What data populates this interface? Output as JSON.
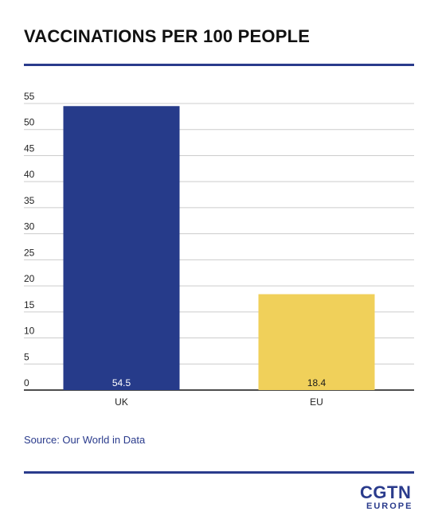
{
  "title": "VACCINATIONS PER 100 PEOPLE",
  "source": "Source: Our World in Data",
  "logo": {
    "main": "CGTN",
    "sub": "EUROPE"
  },
  "colors": {
    "accent": "#2a3b8c",
    "uk_bar": "#263b8a",
    "eu_bar": "#f0d05a",
    "grid": "#cccccc"
  },
  "chart_data": {
    "type": "bar",
    "categories": [
      "UK",
      "EU"
    ],
    "values": [
      54.5,
      18.4
    ],
    "data_labels": [
      "54.5",
      "18.4"
    ],
    "bar_colors": [
      "#263b8a",
      "#f0d05a"
    ],
    "label_colors": [
      "#ffffff",
      "#1a1a1a"
    ],
    "title": "VACCINATIONS PER 100 PEOPLE",
    "xlabel": "",
    "ylabel": "",
    "ylim": [
      0,
      55
    ],
    "yticks": [
      0,
      5,
      10,
      15,
      20,
      25,
      30,
      35,
      40,
      45,
      50,
      55
    ],
    "grid": true
  }
}
